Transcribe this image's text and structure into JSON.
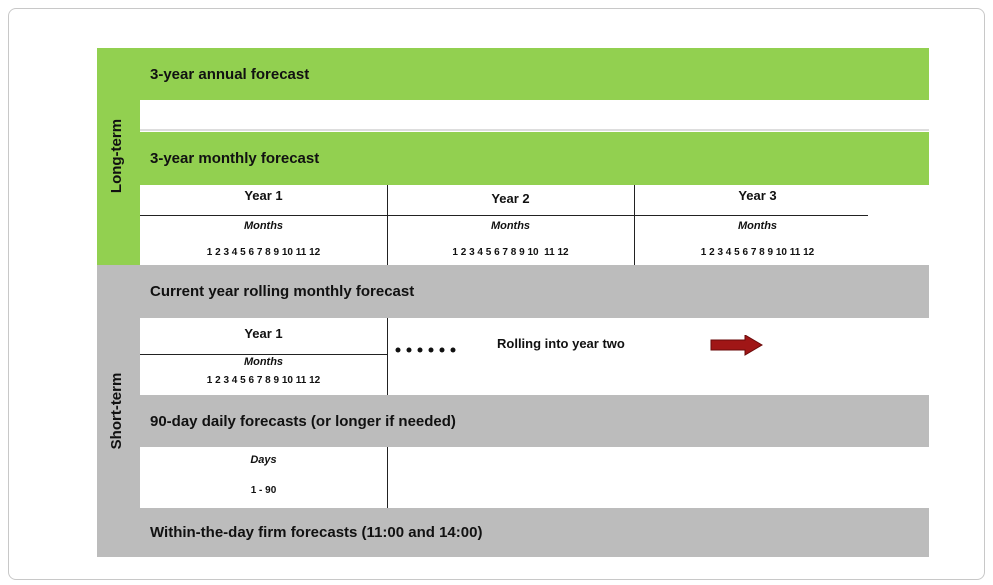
{
  "long_term": {
    "label": "Long-term",
    "annual": "3-year annual forecast",
    "monthly": "3-year monthly forecast",
    "years": [
      {
        "year": "Year 1",
        "unit": "Months",
        "range": "1 2 3 4 5 6 7 8 9 10 11 12"
      },
      {
        "year": "Year 2",
        "unit": "Months",
        "range": "1 2 3 4 5 6 7 8 9 10  11 12"
      },
      {
        "year": "Year 3",
        "unit": "Months",
        "range": "1 2 3 4 5 6 7 8 9 10 11 12"
      }
    ]
  },
  "short_term": {
    "label": "Short-term",
    "rolling": {
      "title": "Current year rolling monthly forecast",
      "year": "Year 1",
      "unit": "Months",
      "range": "1 2 3 4 5 6 7 8 9 10 11 12",
      "note": "Rolling into year two"
    },
    "daily": {
      "title": "90-day daily forecasts (or longer if needed)",
      "unit": "Days",
      "range": "1 - 90"
    },
    "within_day": "Within-the-day firm forecasts (11:00 and 14:00)"
  }
}
